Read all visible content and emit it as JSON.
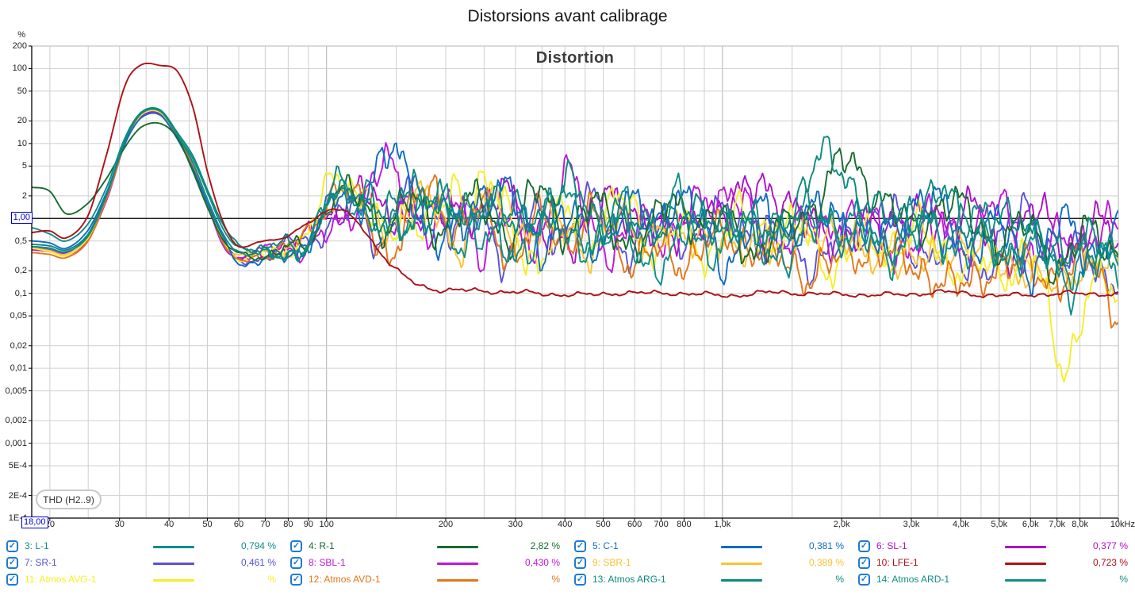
{
  "window": {
    "title": "Distorsions avant calibrage"
  },
  "icons": {
    "check": "✓"
  },
  "chart": {
    "thd_label": "THD (H2..9)",
    "cursor": {
      "y_value": "1,00",
      "x_value": "18,00"
    },
    "y_axis": {
      "unit": "%",
      "ticks": [
        {
          "v": 200,
          "label": "200"
        },
        {
          "v": 100,
          "label": "100"
        },
        {
          "v": 50,
          "label": "50"
        },
        {
          "v": 20,
          "label": "20"
        },
        {
          "v": 10,
          "label": "10"
        },
        {
          "v": 5,
          "label": "5"
        },
        {
          "v": 2,
          "label": "2"
        },
        {
          "v": 0.5,
          "label": "0,5"
        },
        {
          "v": 0.2,
          "label": "0,2"
        },
        {
          "v": 0.1,
          "label": "0,1"
        },
        {
          "v": 0.05,
          "label": "0,05"
        },
        {
          "v": 0.02,
          "label": "0,02"
        },
        {
          "v": 0.01,
          "label": "0,01"
        },
        {
          "v": 0.005,
          "label": "0,005"
        },
        {
          "v": 0.002,
          "label": "0,002"
        },
        {
          "v": 0.001,
          "label": "0,001"
        },
        {
          "v": 0.0005,
          "label": "5E-4"
        },
        {
          "v": 0.0002,
          "label": "2E-4"
        },
        {
          "v": 0.0001,
          "label": "1E-4"
        }
      ]
    },
    "x_axis": {
      "ticks": [
        {
          "f": 20,
          "label": "20"
        },
        {
          "f": 30,
          "label": "30"
        },
        {
          "f": 40,
          "label": "40"
        },
        {
          "f": 50,
          "label": "50"
        },
        {
          "f": 60,
          "label": "60"
        },
        {
          "f": 70,
          "label": "70"
        },
        {
          "f": 80,
          "label": "80"
        },
        {
          "f": 90,
          "label": "90"
        },
        {
          "f": 100,
          "label": "100"
        },
        {
          "f": 200,
          "label": "200"
        },
        {
          "f": 300,
          "label": "300"
        },
        {
          "f": 400,
          "label": "400"
        },
        {
          "f": 500,
          "label": "500"
        },
        {
          "f": 600,
          "label": "600"
        },
        {
          "f": 700,
          "label": "700"
        },
        {
          "f": 800,
          "label": "800"
        },
        {
          "f": 1000,
          "label": "1,0k"
        },
        {
          "f": 2000,
          "label": "2,0k"
        },
        {
          "f": 3000,
          "label": "3,0k"
        },
        {
          "f": 4000,
          "label": "4,0k"
        },
        {
          "f": 5000,
          "label": "5,0k"
        },
        {
          "f": 6000,
          "label": "6,0k"
        },
        {
          "f": 7000,
          "label": "7,0k"
        },
        {
          "f": 8000,
          "label": "8,0k"
        },
        {
          "f": 10000,
          "label": "10kHz"
        }
      ]
    },
    "colors": {
      "grid": "#cfcfcf",
      "grid_decade": "#b0b0b0",
      "border": "#b5b5b5",
      "axis": "#000000",
      "cursor_line": "#000000",
      "checkbox": "#1e7ad6",
      "marker_blue": "#0000cd"
    }
  },
  "chart_data": {
    "type": "line",
    "title": "Distortion",
    "page_title": "Distorsions avant calibrage",
    "x_scale": "log",
    "y_scale": "log",
    "xlim": [
      18,
      10000
    ],
    "ylim": [
      0.0001,
      200
    ],
    "xlabel": "",
    "ylabel": "%",
    "grid": true,
    "legend_position": "bottom",
    "x_gridlines": [
      20,
      25,
      30,
      35,
      40,
      45,
      50,
      60,
      70,
      80,
      90,
      100,
      150,
      200,
      250,
      300,
      350,
      400,
      450,
      500,
      600,
      700,
      800,
      900,
      1000,
      1500,
      2000,
      2500,
      3000,
      3500,
      4000,
      4500,
      5000,
      6000,
      7000,
      8000,
      9000,
      10000
    ],
    "frequencies": [
      18,
      20,
      22,
      25,
      28,
      31,
      34,
      38,
      42,
      46,
      50,
      55,
      60,
      68,
      78,
      90,
      105,
      120,
      140,
      160,
      185,
      215,
      250,
      290,
      340,
      400,
      470,
      550,
      650,
      760,
      900,
      1050,
      1250,
      1500,
      1800,
      2100,
      2500,
      3000,
      3500,
      4200,
      5000,
      6000,
      7200,
      8500,
      10000
    ],
    "series": [
      {
        "name": "3: L-1",
        "value_label": "0,794 %",
        "color": "#0e8c8c",
        "noise": 0.3,
        "values": [
          0.75,
          0.62,
          0.5,
          0.85,
          2.8,
          12,
          26,
          28,
          13,
          5.5,
          1.8,
          0.6,
          0.35,
          0.3,
          0.32,
          0.4,
          2.9,
          2.0,
          0.55,
          0.95,
          0.6,
          1.7,
          0.8,
          0.4,
          0.65,
          1.1,
          0.5,
          0.85,
          0.45,
          0.3,
          0.9,
          0.45,
          0.75,
          0.4,
          1.1,
          0.6,
          0.35,
          0.65,
          0.9,
          0.4,
          0.25,
          0.5,
          0.2,
          0.35,
          0.18
        ]
      },
      {
        "name": "4: R-1",
        "value_label": "2,82 %",
        "color": "#176c2d",
        "noise": 0.28,
        "values": [
          2.6,
          2.3,
          1.15,
          1.6,
          3.6,
          9,
          16.5,
          18.5,
          12,
          4.2,
          1.4,
          0.5,
          0.33,
          0.3,
          0.4,
          0.55,
          2.7,
          1.5,
          0.65,
          1.25,
          0.85,
          2.1,
          1.5,
          0.6,
          1.4,
          0.75,
          1.8,
          0.9,
          0.55,
          1.25,
          0.65,
          1.0,
          0.55,
          0.85,
          1.7,
          4.3,
          2.6,
          0.95,
          1.6,
          0.7,
          0.45,
          0.85,
          0.35,
          0.55,
          0.3
        ]
      },
      {
        "name": "5: C-1",
        "value_label": "0,381 %",
        "color": "#0f6cc4",
        "noise": 0.32,
        "values": [
          0.5,
          0.47,
          0.4,
          0.7,
          2.4,
          10,
          22,
          24,
          11.5,
          4.6,
          1.6,
          0.55,
          0.25,
          0.28,
          0.36,
          0.6,
          1.4,
          1.3,
          5.0,
          4.0,
          1.0,
          0.65,
          2.3,
          1.1,
          0.5,
          1.4,
          0.7,
          1.2,
          0.6,
          1.7,
          0.8,
          0.5,
          1.0,
          0.55,
          0.85,
          1.4,
          0.6,
          1.8,
          0.8,
          0.5,
          0.9,
          0.4,
          0.6,
          0.3,
          0.45
        ]
      },
      {
        "name": "6: SL-1",
        "value_label": "0,377 %",
        "color": "#ac10c8",
        "noise": 0.32,
        "values": [
          0.42,
          0.4,
          0.35,
          0.6,
          2.1,
          10.5,
          23.5,
          25,
          12,
          4.8,
          1.5,
          0.5,
          0.3,
          0.35,
          0.4,
          0.5,
          1.0,
          2.1,
          1.4,
          3.6,
          0.85,
          1.4,
          0.65,
          2.4,
          0.9,
          0.55,
          1.5,
          0.7,
          1.1,
          0.55,
          2.5,
          1.0,
          2.7,
          0.75,
          1.35,
          0.6,
          1.1,
          0.5,
          0.85,
          1.6,
          0.55,
          0.9,
          0.35,
          0.55,
          0.85
        ]
      },
      {
        "name": "7: SR-1",
        "value_label": "0,461 %",
        "color": "#5a51d8",
        "noise": 0.3,
        "values": [
          0.4,
          0.38,
          0.33,
          0.55,
          2.0,
          10,
          22.5,
          24,
          11.5,
          4.5,
          1.45,
          0.45,
          0.28,
          0.3,
          0.38,
          0.46,
          0.95,
          1.5,
          0.8,
          1.7,
          1.15,
          0.55,
          1.0,
          0.5,
          1.25,
          0.6,
          0.9,
          0.45,
          0.8,
          1.15,
          0.5,
          0.9,
          0.42,
          0.7,
          0.33,
          0.6,
          0.88,
          0.38,
          0.55,
          0.27,
          0.45,
          0.68,
          0.27,
          0.42,
          0.22
        ]
      },
      {
        "name": "8: SBL-1",
        "value_label": "0,430 %",
        "color": "#bf17da",
        "noise": 0.32,
        "values": [
          0.38,
          0.36,
          0.32,
          0.52,
          1.9,
          10,
          23,
          25,
          12,
          4.7,
          1.5,
          0.42,
          0.3,
          0.33,
          0.37,
          0.44,
          0.85,
          2.4,
          3.8,
          1.05,
          0.6,
          1.5,
          0.72,
          1.2,
          0.52,
          1.9,
          0.8,
          0.48,
          1.45,
          0.62,
          1.0,
          2.1,
          0.62,
          1.15,
          0.52,
          0.9,
          0.42,
          0.72,
          1.3,
          0.52,
          0.82,
          0.33,
          0.6,
          1.0,
          0.48
        ]
      },
      {
        "name": "9: SBR-1",
        "value_label": "0,389 %",
        "color": "#fcc235",
        "noise": 0.3,
        "values": [
          0.4,
          0.37,
          0.33,
          0.55,
          2.1,
          10.5,
          24,
          26,
          12.5,
          5.0,
          1.55,
          0.46,
          0.3,
          0.34,
          0.4,
          0.52,
          2.8,
          1.45,
          0.62,
          1.1,
          1.65,
          0.8,
          1.85,
          0.72,
          0.42,
          0.9,
          0.52,
          1.35,
          0.6,
          0.36,
          0.72,
          0.42,
          0.8,
          0.38,
          0.62,
          0.3,
          0.52,
          0.26,
          0.42,
          0.21,
          0.36,
          0.16,
          0.3,
          0.13,
          0.24
        ]
      },
      {
        "name": "10: LFE-1",
        "value_label": "0,723 %",
        "color": "#ad1117",
        "noise": 0.03,
        "values": [
          0.65,
          0.68,
          0.55,
          1.1,
          8,
          60,
          112,
          110,
          92,
          30,
          4.2,
          0.85,
          0.42,
          0.5,
          0.55,
          0.9,
          1.3,
          0.85,
          0.3,
          0.16,
          0.12,
          0.11,
          0.105,
          0.1,
          0.1,
          0.1,
          0.098,
          0.1,
          0.096,
          0.1,
          0.099,
          0.097,
          0.1,
          0.098,
          0.096,
          0.1,
          0.098,
          0.096,
          0.1,
          0.098,
          0.096,
          0.099,
          0.097,
          0.095,
          0.098
        ]
      },
      {
        "name": "11: Atmos AVG-1",
        "value_label": "%",
        "color": "#f6ee27",
        "noise": 0.32,
        "values": [
          0.4,
          0.36,
          0.32,
          0.55,
          2.1,
          10,
          24,
          26,
          12.5,
          5.3,
          1.65,
          0.5,
          0.3,
          0.33,
          0.4,
          0.55,
          2.85,
          2.2,
          0.7,
          1.95,
          0.9,
          1.55,
          2.4,
          0.82,
          0.5,
          1.2,
          0.62,
          1.0,
          0.52,
          0.9,
          0.46,
          0.82,
          0.4,
          0.72,
          0.36,
          0.62,
          0.3,
          0.52,
          0.26,
          0.42,
          0.2,
          0.32,
          0.006,
          0.16,
          0.09
        ]
      },
      {
        "name": "12: Atmos AVD-1",
        "value_label": "%",
        "color": "#e3761b",
        "noise": 0.3,
        "values": [
          0.35,
          0.33,
          0.3,
          0.5,
          2.0,
          10,
          25,
          27,
          12.5,
          5.0,
          1.55,
          0.45,
          0.28,
          0.31,
          0.37,
          0.5,
          2.95,
          1.8,
          0.52,
          0.9,
          1.5,
          0.7,
          1.2,
          0.56,
          0.92,
          0.46,
          0.72,
          0.36,
          0.56,
          0.3,
          0.5,
          0.26,
          0.46,
          0.22,
          0.4,
          0.19,
          0.35,
          0.16,
          0.3,
          0.13,
          0.26,
          0.11,
          0.2,
          0.3,
          0.09
        ]
      },
      {
        "name": "13: Atmos ARG-1",
        "value_label": "%",
        "color": "#0b8a7e",
        "noise": 0.28,
        "values": [
          0.45,
          0.43,
          0.38,
          0.62,
          2.3,
          11,
          26,
          28,
          14,
          6.8,
          2.4,
          0.8,
          0.45,
          0.36,
          0.42,
          0.52,
          3.1,
          2.2,
          0.8,
          1.5,
          2.3,
          1.0,
          2.6,
          1.2,
          0.6,
          2.2,
          0.9,
          1.5,
          0.7,
          1.2,
          0.55,
          1.0,
          0.62,
          2.2,
          4.6,
          2.5,
          0.9,
          1.8,
          2.4,
          0.8,
          0.5,
          0.9,
          0.35,
          0.6,
          0.28
        ]
      },
      {
        "name": "14: Atmos ARD-1",
        "value_label": "%",
        "color": "#118d85",
        "noise": 0.3,
        "values": [
          0.42,
          0.4,
          0.36,
          0.58,
          2.2,
          11,
          25,
          27,
          13,
          6.2,
          2.2,
          0.7,
          0.4,
          0.34,
          0.39,
          0.48,
          2.9,
          2.0,
          0.62,
          1.1,
          1.85,
          0.82,
          1.5,
          0.66,
          1.1,
          0.52,
          0.92,
          1.55,
          0.62,
          1.0,
          0.46,
          0.82,
          1.4,
          0.56,
          0.9,
          0.42,
          0.72,
          1.2,
          0.52,
          0.82,
          0.36,
          0.62,
          0.26,
          0.46,
          0.07
        ]
      }
    ]
  }
}
